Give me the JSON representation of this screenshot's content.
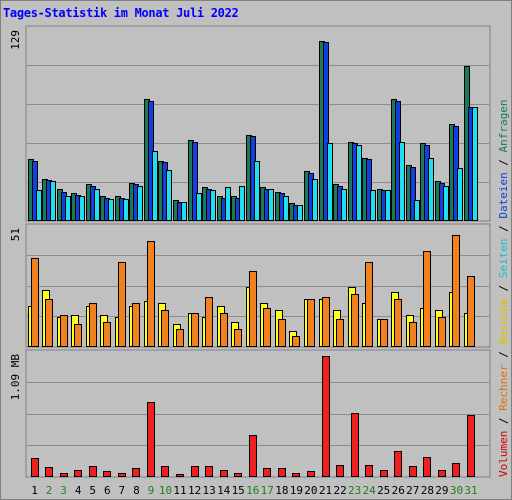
{
  "title": "Tages-Statistik im Monat Juli 2022",
  "colors": {
    "background": "#c0c0c0",
    "panel_border": "#808080",
    "grid": "#8c8c8c",
    "anfragen": "#1a7a5a",
    "dateien": "#1040e0",
    "seiten": "#20e0f0",
    "besuche": "#ffff20",
    "rechner": "#f08020",
    "volumen": "#f02020",
    "weekend_tick": "#208020",
    "weekday_tick": "#000000"
  },
  "chart_data": [
    {
      "type": "bar",
      "ylabel": "129",
      "ylim": [
        0,
        129
      ],
      "categories": [
        "1",
        "2",
        "3",
        "4",
        "5",
        "6",
        "7",
        "8",
        "9",
        "10",
        "11",
        "12",
        "13",
        "14",
        "15",
        "16",
        "17",
        "18",
        "19",
        "20",
        "21",
        "22",
        "23",
        "24",
        "25",
        "26",
        "27",
        "28",
        "29",
        "30",
        "31"
      ],
      "weekend_days": [
        "2",
        "3",
        "9",
        "10",
        "16",
        "17",
        "23",
        "24",
        "30",
        "31"
      ],
      "series": [
        {
          "name": "Anfragen",
          "color": "#1a7a5a",
          "values": [
            42,
            29,
            22,
            19,
            25,
            17,
            17,
            26,
            83,
            41,
            14,
            55,
            23,
            17,
            17,
            59,
            23,
            20,
            12,
            34,
            123,
            25,
            54,
            43,
            22,
            83,
            38,
            53,
            27,
            66,
            106
          ]
        },
        {
          "name": "Dateien",
          "color": "#1040e0",
          "values": [
            41,
            28,
            20,
            18,
            24,
            16,
            16,
            25,
            82,
            40,
            13,
            54,
            22,
            16,
            16,
            58,
            22,
            19,
            11,
            33,
            122,
            24,
            53,
            42,
            21,
            82,
            37,
            52,
            26,
            65,
            78
          ]
        },
        {
          "name": "Seiten",
          "color": "#20e0f0",
          "values": [
            21,
            27,
            17,
            17,
            22,
            15,
            15,
            24,
            48,
            35,
            13,
            19,
            21,
            23,
            24,
            41,
            22,
            17,
            11,
            29,
            53,
            22,
            52,
            21,
            21,
            54,
            14,
            43,
            24,
            36,
            78
          ]
        }
      ]
    },
    {
      "type": "bar",
      "ylabel": "51",
      "ylim": [
        0,
        51
      ],
      "categories": [
        "1",
        "2",
        "3",
        "4",
        "5",
        "6",
        "7",
        "8",
        "9",
        "10",
        "11",
        "12",
        "13",
        "14",
        "15",
        "16",
        "17",
        "18",
        "19",
        "20",
        "21",
        "22",
        "23",
        "24",
        "25",
        "26",
        "27",
        "28",
        "29",
        "30",
        "31"
      ],
      "series": [
        {
          "name": "Besuche",
          "color": "#ffff20",
          "values": [
            18,
            25,
            13,
            14,
            18,
            14,
            13,
            18,
            20,
            19,
            10,
            15,
            13,
            18,
            11,
            26,
            19,
            16,
            7,
            21,
            21,
            16,
            26,
            19,
            12,
            24,
            14,
            17,
            16,
            24,
            15
          ]
        },
        {
          "name": "Rechner",
          "color": "#f08020",
          "values": [
            39,
            21,
            14,
            10,
            19,
            11,
            37,
            19,
            46,
            16,
            8,
            15,
            22,
            15,
            8,
            33,
            17,
            12,
            5,
            21,
            22,
            12,
            23,
            37,
            12,
            21,
            11,
            42,
            13,
            49,
            31
          ]
        }
      ]
    },
    {
      "type": "bar",
      "ylabel": "1.09 MB",
      "ylim": [
        0,
        1.09
      ],
      "categories": [
        "1",
        "2",
        "3",
        "4",
        "5",
        "6",
        "7",
        "8",
        "9",
        "10",
        "11",
        "12",
        "13",
        "14",
        "15",
        "16",
        "17",
        "18",
        "19",
        "20",
        "21",
        "22",
        "23",
        "24",
        "25",
        "26",
        "27",
        "28",
        "29",
        "30",
        "31"
      ],
      "series": [
        {
          "name": "Volumen",
          "color": "#f02020",
          "values": [
            0.17,
            0.09,
            0.04,
            0.06,
            0.1,
            0.05,
            0.04,
            0.08,
            0.68,
            0.1,
            0.03,
            0.1,
            0.1,
            0.06,
            0.04,
            0.38,
            0.08,
            0.08,
            0.04,
            0.05,
            1.09,
            0.11,
            0.58,
            0.11,
            0.06,
            0.23,
            0.1,
            0.18,
            0.06,
            0.13,
            0.56
          ]
        }
      ]
    }
  ],
  "legend_right": [
    {
      "text": "Volumen",
      "color": "#d00000"
    },
    {
      "text": " / ",
      "color": "#000000"
    },
    {
      "text": "Rechner",
      "color": "#e07010"
    },
    {
      "text": " / ",
      "color": "#000000"
    },
    {
      "text": "Besuche",
      "color": "#e0c000"
    },
    {
      "text": " / ",
      "color": "#000000"
    },
    {
      "text": "Seiten",
      "color": "#10c0d0"
    },
    {
      "text": " / ",
      "color": "#000000"
    },
    {
      "text": "Dateien",
      "color": "#1040e0"
    },
    {
      "text": " / ",
      "color": "#000000"
    },
    {
      "text": "Anfragen",
      "color": "#1a7a5a"
    }
  ]
}
